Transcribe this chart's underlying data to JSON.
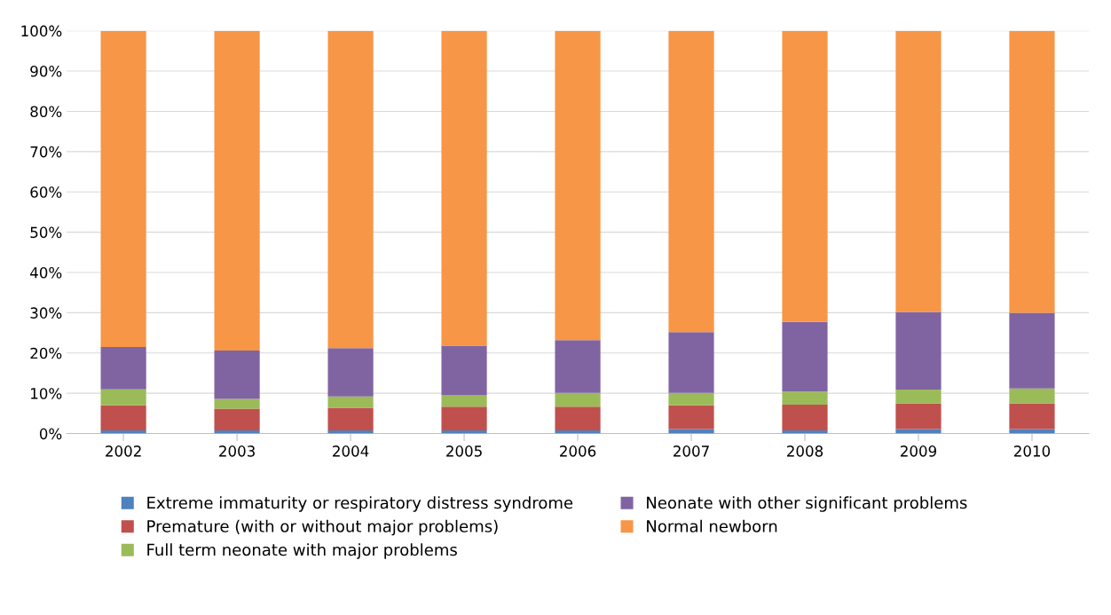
{
  "chart_data": {
    "type": "bar",
    "stacked": true,
    "categories": [
      "2002",
      "2003",
      "2004",
      "2005",
      "2006",
      "2007",
      "2008",
      "2009",
      "2010"
    ],
    "series": [
      {
        "name": "Extreme immaturity or respiratory distress syndrome",
        "color": "#4f81bd",
        "values": [
          0.8,
          0.8,
          0.8,
          0.8,
          0.8,
          1.1,
          0.8,
          1.1,
          1.1
        ]
      },
      {
        "name": "Premature (with or without major problems)",
        "color": "#c0504d",
        "values": [
          6.2,
          5.4,
          5.6,
          5.9,
          5.9,
          5.9,
          6.4,
          6.4,
          6.4
        ]
      },
      {
        "name": "Full term neonate with major problems",
        "color": "#9bbb59",
        "values": [
          4.0,
          2.4,
          2.8,
          2.8,
          3.4,
          3.1,
          3.2,
          3.4,
          3.7
        ]
      },
      {
        "name": "Neonate with other significant problems",
        "color": "#8064a2",
        "values": [
          10.5,
          12.0,
          12.0,
          12.3,
          13.1,
          15.1,
          17.3,
          19.3,
          18.8
        ]
      },
      {
        "name": "Normal newborn",
        "color": "#f79646",
        "values": [
          78.5,
          79.4,
          78.8,
          78.2,
          76.8,
          74.8,
          72.3,
          69.8,
          70.0
        ]
      }
    ],
    "ylim": [
      0,
      100
    ],
    "yticks": [
      {
        "value": 0,
        "label": "0%"
      },
      {
        "value": 10,
        "label": "10%"
      },
      {
        "value": 20,
        "label": "20%"
      },
      {
        "value": 30,
        "label": "30%"
      },
      {
        "value": 40,
        "label": "40%"
      },
      {
        "value": 50,
        "label": "50%"
      },
      {
        "value": 60,
        "label": "60%"
      },
      {
        "value": 70,
        "label": "70%"
      },
      {
        "value": 80,
        "label": "80%"
      },
      {
        "value": 90,
        "label": "90%"
      },
      {
        "value": 100,
        "label": "100%"
      }
    ],
    "grid": "y",
    "legend": "bottom"
  }
}
